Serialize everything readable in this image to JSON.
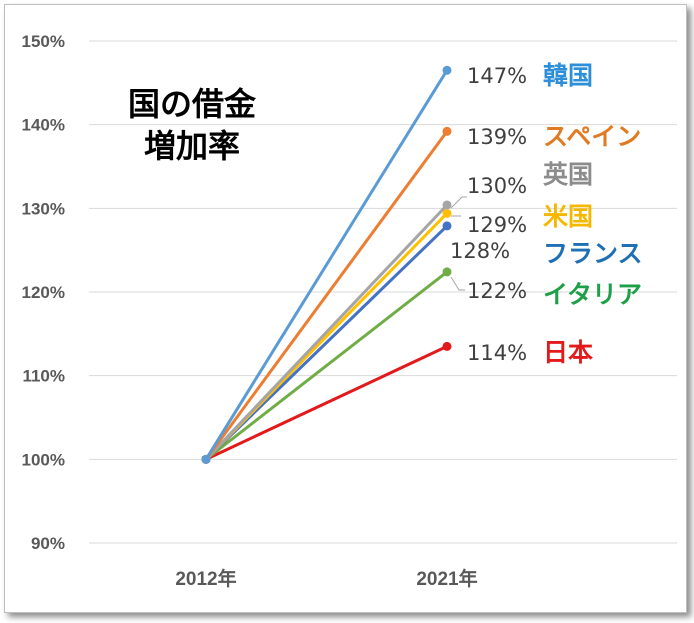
{
  "chart_data": {
    "type": "line",
    "title": [
      "国の借金",
      "増加率"
    ],
    "x_categories": [
      "2012年",
      "2021年"
    ],
    "y_ticks": [
      "90%",
      "100%",
      "110%",
      "120%",
      "130%",
      "140%",
      "150%"
    ],
    "ylim": [
      90,
      150
    ],
    "grid": true,
    "series": [
      {
        "name": "韓国",
        "values": [
          100,
          146.5
        ],
        "value_label": "147%",
        "color": "#5b9bd5",
        "name_color": "#2e8fd8"
      },
      {
        "name": "スペイン",
        "values": [
          100,
          139.2
        ],
        "value_label": "139%",
        "color": "#ed7d31",
        "name_color": "#e07b22"
      },
      {
        "name": "英国",
        "values": [
          100,
          130.4
        ],
        "value_label": "130%",
        "color": "#a5a5a5",
        "name_color": "#8c8c8c"
      },
      {
        "name": "米国",
        "values": [
          100,
          129.4
        ],
        "value_label": "129%",
        "color": "#ffc000",
        "name_color": "#f5b800"
      },
      {
        "name": "フランス",
        "values": [
          100,
          127.9
        ],
        "value_label": "128%",
        "color": "#4472c4",
        "name_color": "#1f6fb5"
      },
      {
        "name": "イタリア",
        "values": [
          100,
          122.4
        ],
        "value_label": "122%",
        "color": "#70ad47",
        "name_color": "#1ea04a"
      },
      {
        "name": "日本",
        "values": [
          100,
          113.5
        ],
        "value_label": "114%",
        "color": "#e31a1c",
        "name_color": "#e31a1c"
      }
    ]
  }
}
